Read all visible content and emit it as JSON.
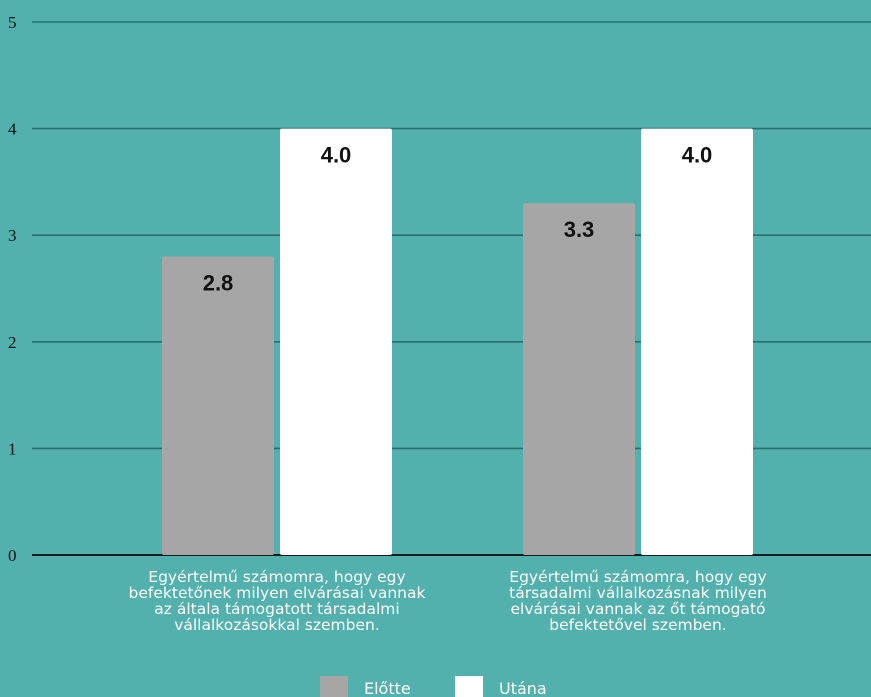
{
  "chart_data": {
    "type": "bar",
    "categories": [
      "Egyértelmű számomra, hogy egy befektetőnek milyen elvárásai vannak az általa támogatott társadalmi vállalkozásokkal szemben.",
      "Egyértelmű számomra, hogy egy társadalmi vállalkozásnak milyen elvárásai vannak az őt támogató befektetővel szemben."
    ],
    "category_lines": [
      [
        "Egyértelmű számomra, hogy egy",
        "befektetőnek milyen elvárásai vannak",
        "az általa támogatott társadalmi",
        "vállalkozásokkal szemben."
      ],
      [
        "Egyértelmű számomra, hogy egy",
        "társadalmi vállalkozásnak milyen",
        "elvárásai vannak az őt támogató",
        "befektetővel szemben."
      ]
    ],
    "series": [
      {
        "name": "Előtte",
        "values": [
          2.8,
          3.3
        ],
        "labels": [
          "2.8",
          "3.3"
        ],
        "color": "#a6a6a6"
      },
      {
        "name": "Utána",
        "values": [
          4.0,
          4.0
        ],
        "labels": [
          "4.0",
          "4.0"
        ],
        "color": "#ffffff"
      }
    ],
    "ylim": [
      0,
      5
    ],
    "yticks": [
      "0",
      "1",
      "2",
      "3",
      "4",
      "5"
    ],
    "grid": true,
    "legend_position": "bottom-center",
    "background_color": "#52b0ad",
    "gridline_color": "#2b6f6c"
  }
}
